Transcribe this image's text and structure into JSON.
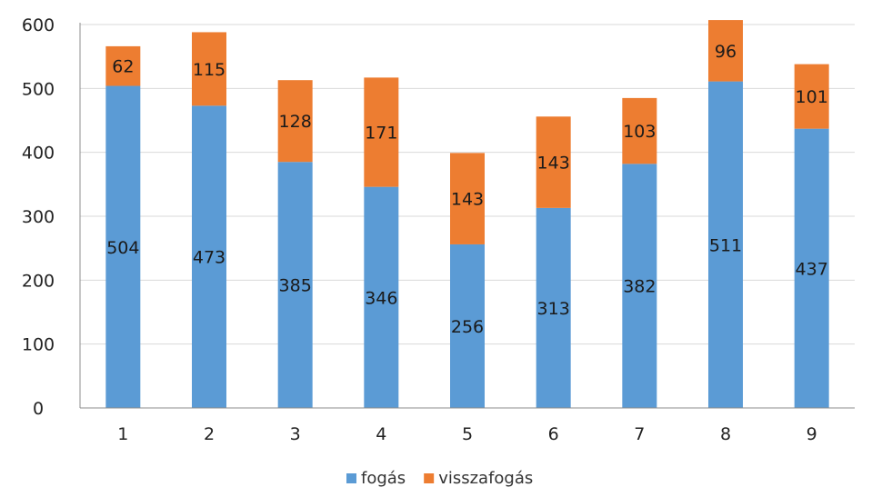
{
  "chart_data": {
    "type": "bar",
    "stacked": true,
    "categories": [
      "1",
      "2",
      "3",
      "4",
      "5",
      "6",
      "7",
      "8",
      "9"
    ],
    "series": [
      {
        "name": "fogás",
        "color": "#5b9bd5",
        "values": [
          504,
          473,
          385,
          346,
          256,
          313,
          382,
          511,
          437
        ]
      },
      {
        "name": "visszafogás",
        "color": "#ed7d31",
        "values": [
          62,
          115,
          128,
          171,
          143,
          143,
          103,
          96,
          101
        ]
      }
    ],
    "yticks": [
      "0",
      "100",
      "200",
      "300",
      "400",
      "500",
      "600"
    ],
    "ylim": [
      0,
      600
    ],
    "grid": true,
    "legend_position": "bottom"
  }
}
